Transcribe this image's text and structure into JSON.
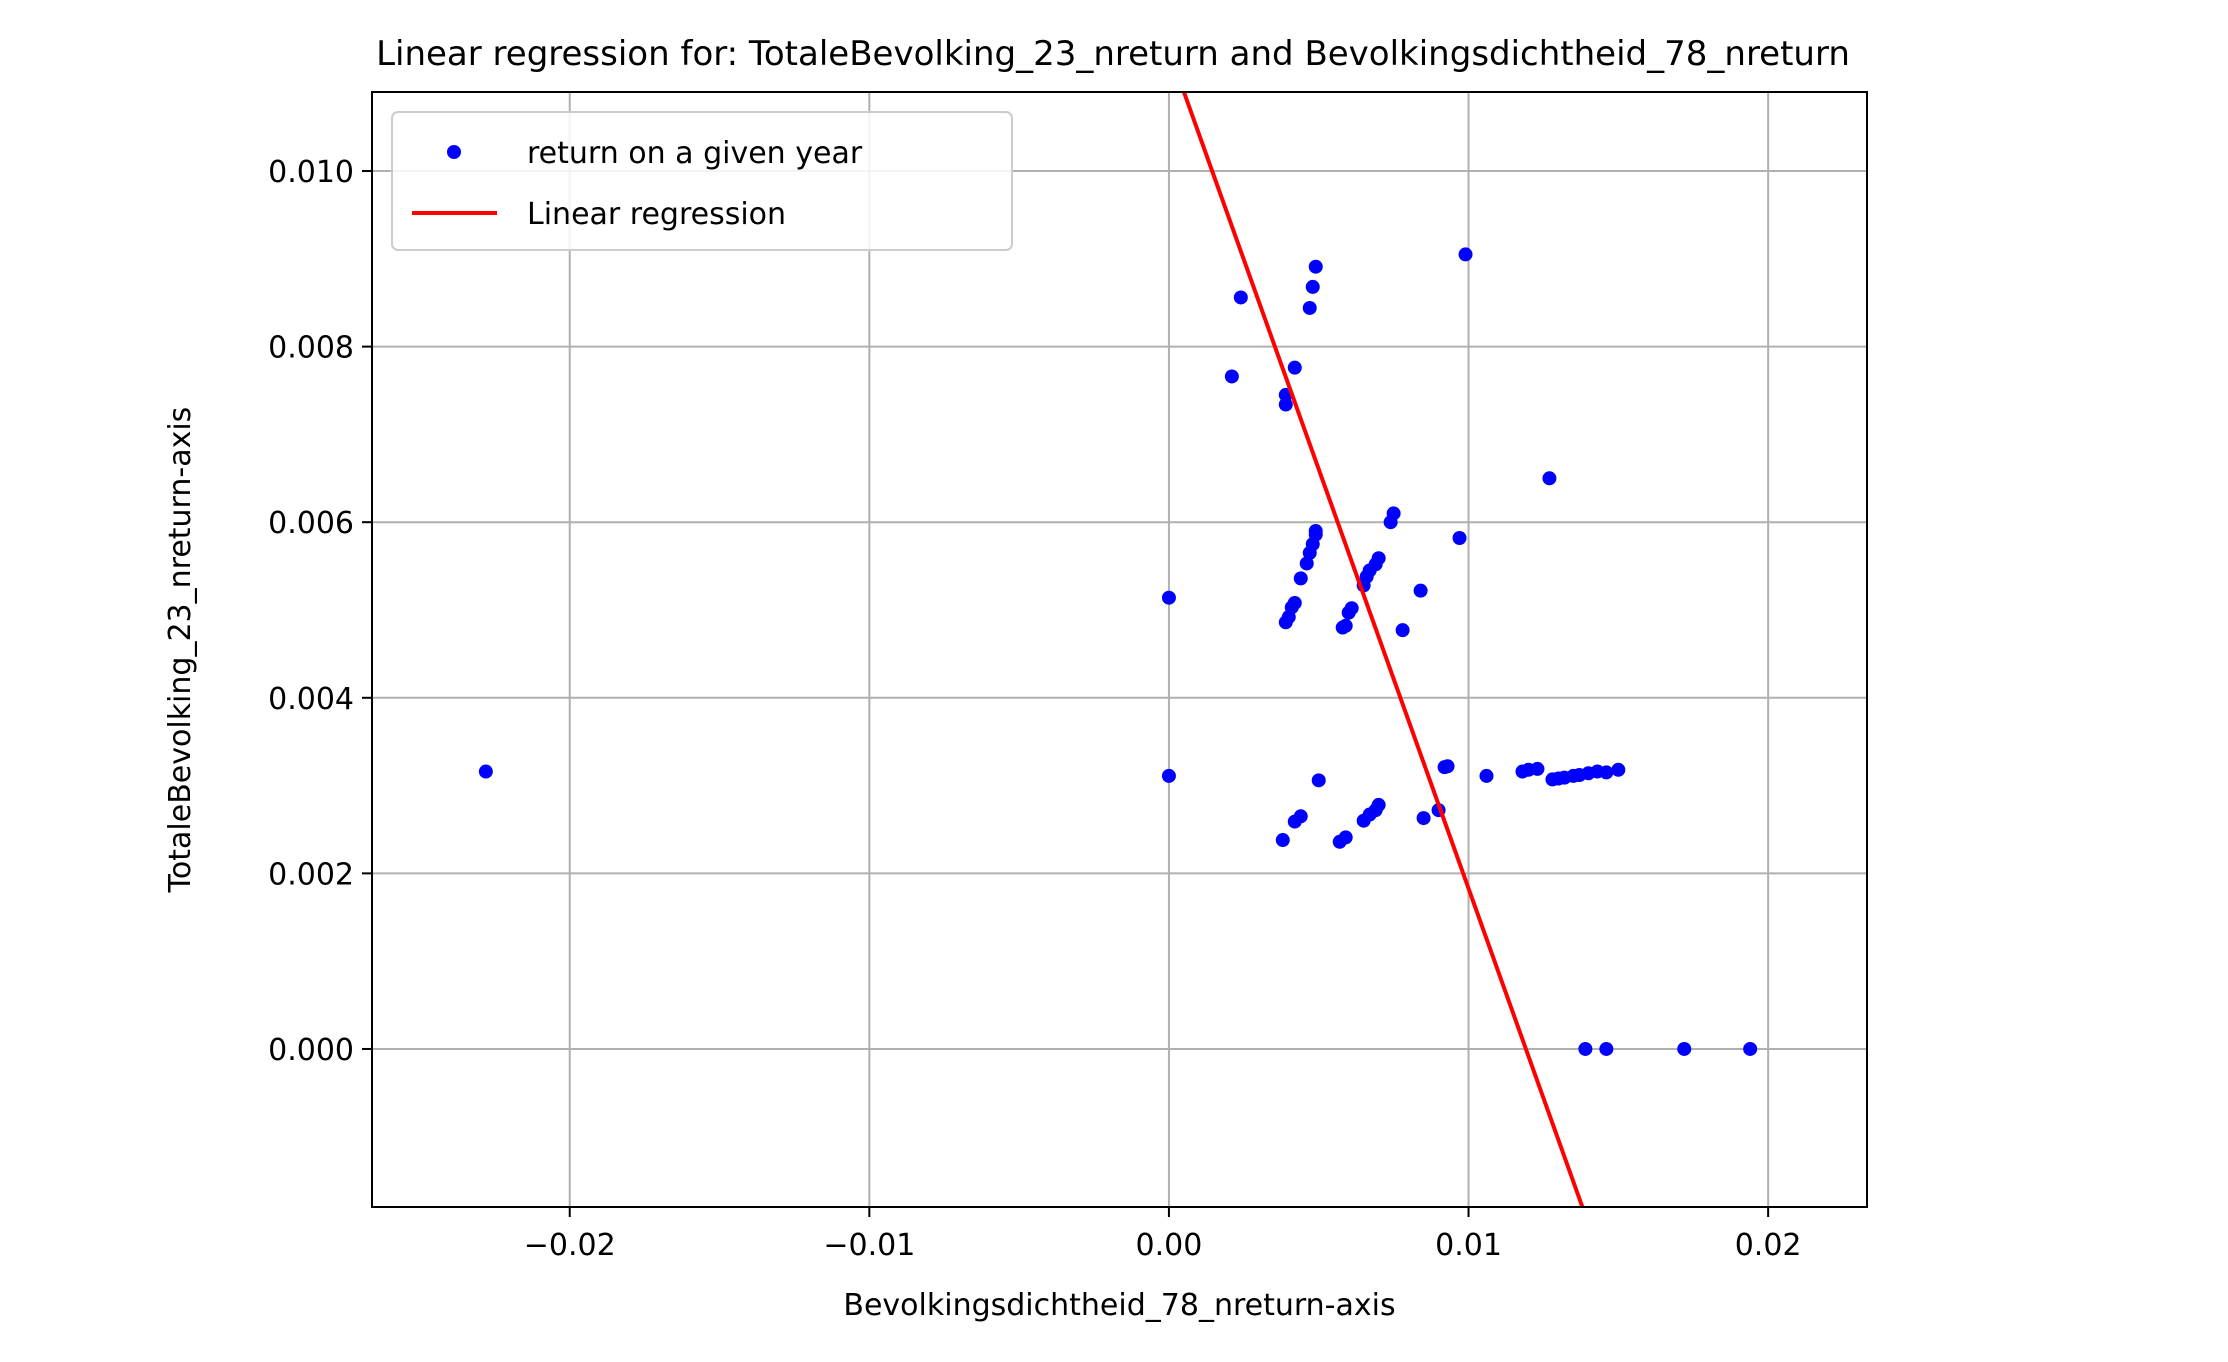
{
  "chart_data": {
    "type": "scatter",
    "title": "Linear regression for: TotaleBevolking_23_nreturn and Bevolkingsdichtheid_78_nreturn",
    "xlabel": "Bevolkingsdichtheid_78_nreturn-axis",
    "ylabel": "TotaleBevolking_23_nreturn-axis",
    "xlim": [
      -0.0266,
      0.0233
    ],
    "ylim": [
      -0.0018,
      0.0109
    ],
    "x_ticks": [
      -0.02,
      -0.01,
      0.0,
      0.01,
      0.02
    ],
    "x_tick_labels": [
      "−0.02",
      "−0.01",
      "0.00",
      "0.01",
      "0.02"
    ],
    "y_ticks": [
      0.0,
      0.002,
      0.004,
      0.006,
      0.008,
      0.01
    ],
    "y_tick_labels": [
      "0.000",
      "0.002",
      "0.004",
      "0.006",
      "0.008",
      "0.010"
    ],
    "grid": true,
    "legend_position": "upper-left",
    "series": [
      {
        "name": "return on a given year",
        "kind": "scatter",
        "color": "#0000ff",
        "points": [
          [
            -0.0228,
            0.00316
          ],
          [
            0.0,
            0.00514
          ],
          [
            0.0,
            0.00311
          ],
          [
            0.0021,
            0.00766
          ],
          [
            0.0024,
            0.00856
          ],
          [
            0.0039,
            0.00745
          ],
          [
            0.0039,
            0.00734
          ],
          [
            0.0042,
            0.00776
          ],
          [
            0.0047,
            0.00844
          ],
          [
            0.0048,
            0.00868
          ],
          [
            0.0049,
            0.00891
          ],
          [
            0.0039,
            0.00486
          ],
          [
            0.004,
            0.00492
          ],
          [
            0.0041,
            0.00503
          ],
          [
            0.0042,
            0.00508
          ],
          [
            0.0044,
            0.00536
          ],
          [
            0.0046,
            0.00553
          ],
          [
            0.0047,
            0.00565
          ],
          [
            0.0048,
            0.00575
          ],
          [
            0.0049,
            0.00586
          ],
          [
            0.0049,
            0.0059
          ],
          [
            0.0058,
            0.0048
          ],
          [
            0.0059,
            0.00482
          ],
          [
            0.006,
            0.00497
          ],
          [
            0.0061,
            0.00502
          ],
          [
            0.0065,
            0.00528
          ],
          [
            0.0066,
            0.00538
          ],
          [
            0.0067,
            0.00545
          ],
          [
            0.0069,
            0.00552
          ],
          [
            0.007,
            0.00559
          ],
          [
            0.0074,
            0.006
          ],
          [
            0.0075,
            0.0061
          ],
          [
            0.0078,
            0.00477
          ],
          [
            0.0084,
            0.00522
          ],
          [
            0.0097,
            0.00582
          ],
          [
            0.0099,
            0.00905
          ],
          [
            0.0127,
            0.0065
          ],
          [
            0.0038,
            0.00238
          ],
          [
            0.0042,
            0.00259
          ],
          [
            0.0044,
            0.00265
          ],
          [
            0.005,
            0.00306
          ],
          [
            0.0057,
            0.00236
          ],
          [
            0.0059,
            0.00241
          ],
          [
            0.0065,
            0.0026
          ],
          [
            0.0067,
            0.00267
          ],
          [
            0.0069,
            0.00272
          ],
          [
            0.007,
            0.00278
          ],
          [
            0.0085,
            0.00263
          ],
          [
            0.009,
            0.00272
          ],
          [
            0.0092,
            0.00321
          ],
          [
            0.0093,
            0.00322
          ],
          [
            0.0106,
            0.00311
          ],
          [
            0.0118,
            0.00316
          ],
          [
            0.012,
            0.00318
          ],
          [
            0.0123,
            0.00319
          ],
          [
            0.0128,
            0.00307
          ],
          [
            0.013,
            0.00308
          ],
          [
            0.0132,
            0.00309
          ],
          [
            0.0135,
            0.00311
          ],
          [
            0.0137,
            0.00312
          ],
          [
            0.014,
            0.00314
          ],
          [
            0.0143,
            0.00316
          ],
          [
            0.0146,
            0.00315
          ],
          [
            0.015,
            0.00318
          ],
          [
            0.0139,
            0.0
          ],
          [
            0.0146,
            0.0
          ],
          [
            0.0172,
            0.0
          ],
          [
            0.0194,
            0.0
          ]
        ]
      },
      {
        "name": "Linear regression",
        "kind": "line",
        "color": "#ff0000",
        "points": [
          [
            0.0005,
            0.0109
          ],
          [
            0.0138,
            -0.0018
          ]
        ]
      }
    ]
  }
}
